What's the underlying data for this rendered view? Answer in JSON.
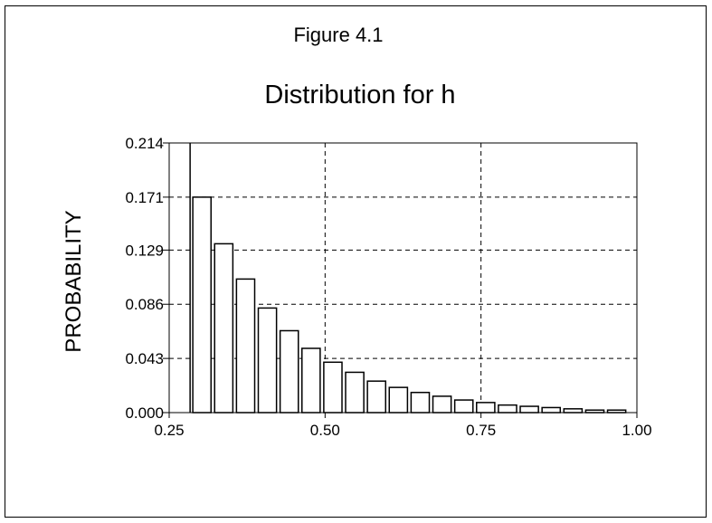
{
  "figure_label": "Figure 4.1",
  "chart_data": {
    "type": "bar",
    "title": "Distribution for h",
    "xlabel": "",
    "ylabel": "PROBABILITY",
    "xlim": [
      0.25,
      1.0
    ],
    "ylim": [
      0.0,
      0.214
    ],
    "x_ticks": [
      "0.25",
      "0.50",
      "0.75",
      "1.00"
    ],
    "y_ticks": [
      "0.000",
      "0.043",
      "0.086",
      "0.129",
      "0.171",
      "0.214"
    ],
    "grid": true,
    "bin_width": 0.035,
    "x": [
      0.3025,
      0.3375,
      0.3725,
      0.4075,
      0.4425,
      0.4775,
      0.5125,
      0.5475,
      0.5825,
      0.6175,
      0.6525,
      0.6875,
      0.7225,
      0.7575,
      0.7925,
      0.8275,
      0.8625,
      0.8975,
      0.9325,
      0.9675
    ],
    "values": [
      0.171,
      0.134,
      0.106,
      0.083,
      0.065,
      0.051,
      0.04,
      0.032,
      0.025,
      0.02,
      0.016,
      0.013,
      0.01,
      0.008,
      0.006,
      0.005,
      0.004,
      0.003,
      0.002,
      0.002
    ],
    "colors": {
      "bar_fill": "#ffffff",
      "bar_stroke": "#000000",
      "grid": "#000000"
    }
  }
}
